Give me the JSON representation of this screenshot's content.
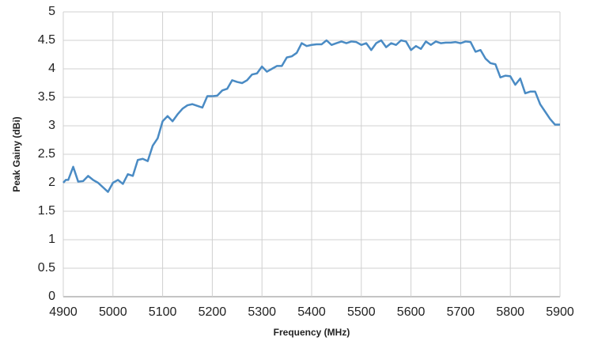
{
  "chart_data": {
    "type": "line",
    "xlabel": "Frequency (MHz)",
    "ylabel": "Peak Gainy (dBi)",
    "x": [
      4900,
      4905,
      4910,
      4920,
      4925,
      4930,
      4940,
      4950,
      4960,
      4970,
      4980,
      4990,
      5000,
      5010,
      5020,
      5030,
      5040,
      5050,
      5060,
      5070,
      5080,
      5090,
      5100,
      5110,
      5120,
      5130,
      5140,
      5150,
      5160,
      5170,
      5180,
      5190,
      5200,
      5210,
      5220,
      5230,
      5240,
      5250,
      5260,
      5270,
      5280,
      5290,
      5300,
      5310,
      5320,
      5330,
      5340,
      5350,
      5360,
      5370,
      5380,
      5390,
      5400,
      5410,
      5420,
      5430,
      5440,
      5450,
      5460,
      5470,
      5480,
      5490,
      5500,
      5510,
      5520,
      5530,
      5540,
      5550,
      5560,
      5570,
      5580,
      5590,
      5600,
      5610,
      5620,
      5630,
      5640,
      5650,
      5660,
      5670,
      5680,
      5690,
      5700,
      5710,
      5720,
      5730,
      5740,
      5750,
      5760,
      5770,
      5780,
      5790,
      5800,
      5810,
      5820,
      5830,
      5840,
      5850,
      5860,
      5870,
      5880,
      5890,
      5900
    ],
    "series": [
      {
        "name": "Peak Gain",
        "color": "#4a8bc4",
        "values": [
          2.0,
          2.05,
          2.05,
          2.28,
          2.15,
          2.02,
          2.03,
          2.12,
          2.05,
          2.0,
          1.92,
          1.84,
          2.0,
          2.05,
          1.98,
          2.15,
          2.12,
          2.4,
          2.42,
          2.38,
          2.65,
          2.78,
          3.08,
          3.17,
          3.08,
          3.2,
          3.3,
          3.36,
          3.38,
          3.35,
          3.32,
          3.52,
          3.52,
          3.53,
          3.62,
          3.65,
          3.8,
          3.77,
          3.75,
          3.8,
          3.9,
          3.92,
          4.04,
          3.95,
          4.0,
          4.05,
          4.05,
          4.2,
          4.22,
          4.28,
          4.45,
          4.4,
          4.42,
          4.43,
          4.43,
          4.5,
          4.42,
          4.45,
          4.48,
          4.45,
          4.48,
          4.47,
          4.42,
          4.45,
          4.33,
          4.45,
          4.5,
          4.38,
          4.45,
          4.42,
          4.5,
          4.48,
          4.33,
          4.4,
          4.35,
          4.48,
          4.42,
          4.48,
          4.45,
          4.46,
          4.46,
          4.47,
          4.45,
          4.48,
          4.47,
          4.3,
          4.33,
          4.18,
          4.1,
          4.08,
          3.85,
          3.88,
          3.87,
          3.72,
          3.83,
          3.57,
          3.6,
          3.6,
          3.38,
          3.25,
          3.12,
          3.02,
          3.02
        ]
      }
    ],
    "xlim": [
      4900,
      5900
    ],
    "xticks": [
      4900,
      5000,
      5100,
      5200,
      5300,
      5400,
      5500,
      5600,
      5700,
      5800,
      5900
    ],
    "ylim": [
      0,
      5
    ],
    "yticks": [
      0,
      0.5,
      1,
      1.5,
      2,
      2.5,
      3,
      3.5,
      4,
      4.5,
      5
    ],
    "grid": true
  }
}
